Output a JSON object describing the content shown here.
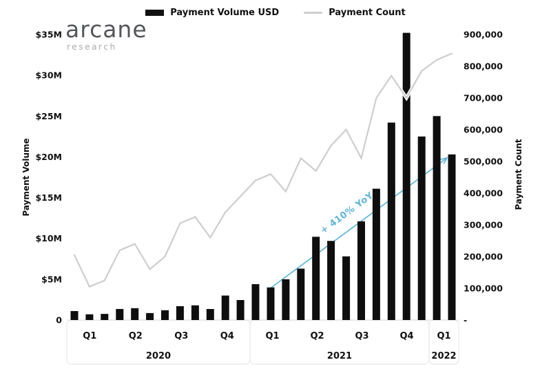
{
  "logo": {
    "title": "arcane",
    "subtitle": "research"
  },
  "legend": {
    "items": [
      {
        "label": "Payment Volume USD",
        "swatch": "bar",
        "color": "#111111"
      },
      {
        "label": "Payment Count",
        "swatch": "line",
        "color": "#cdcdcd"
      }
    ]
  },
  "colors": {
    "bar": "#0e0e0e",
    "line": "#cdcdcd",
    "annotation": "#5cb5d9",
    "axis_box_border": "#ececec",
    "baseline": "#e3e3e3"
  },
  "chart_data": {
    "type": "bar",
    "title": "",
    "x": [
      "Jan 2020",
      "Feb 2020",
      "Mar 2020",
      "Apr 2020",
      "May 2020",
      "Jun 2020",
      "Jul 2020",
      "Aug 2020",
      "Sep 2020",
      "Oct 2020",
      "Nov 2020",
      "Dec 2020",
      "Jan 2021",
      "Feb 2021",
      "Mar 2021",
      "Apr 2021",
      "May 2021",
      "Jun 2021",
      "Jul 2021",
      "Aug 2021",
      "Sep 2021",
      "Oct 2021",
      "Nov 2021",
      "Dec 2021",
      "Jan 2022",
      "Feb 2022"
    ],
    "series": [
      {
        "name": "Payment Volume USD",
        "render": "bar",
        "axis": "left",
        "unit": "USD millions",
        "values": [
          1.1,
          0.7,
          0.75,
          1.35,
          1.45,
          0.85,
          1.2,
          1.7,
          1.8,
          1.35,
          3.0,
          2.45,
          4.4,
          4.0,
          5.0,
          6.3,
          10.2,
          9.7,
          7.8,
          12.1,
          16.1,
          24.2,
          35.2,
          22.5,
          25.0,
          20.3
        ]
      },
      {
        "name": "Payment Count",
        "render": "line",
        "axis": "right",
        "unit": "payments",
        "values": [
          205000,
          105000,
          125000,
          220000,
          240000,
          160000,
          200000,
          305000,
          325000,
          260000,
          340000,
          390000,
          440000,
          460000,
          405000,
          510000,
          470000,
          550000,
          600000,
          510000,
          700000,
          770000,
          700000,
          785000,
          820000,
          840000
        ]
      }
    ],
    "left_axis": {
      "title": "Payment Volume",
      "tick_labels": [
        "$35M",
        "$30M",
        "$25M",
        "$20M",
        "$15M",
        "$10M",
        "$5M",
        "0"
      ],
      "range_musd": [
        0,
        35
      ]
    },
    "right_axis": {
      "title": "Payment Count",
      "tick_labels": [
        "900,000",
        "800,000",
        "700,000",
        "600,000",
        "500,000",
        "400,000",
        "300,000",
        "200,000",
        "100,000",
        "-"
      ],
      "range": [
        0,
        900000
      ]
    },
    "x_axis": {
      "years": [
        {
          "label": "2020",
          "quarters": [
            "Q1",
            "Q2",
            "Q3",
            "Q4"
          ],
          "months": 12
        },
        {
          "label": "2021",
          "quarters": [
            "Q1",
            "Q2",
            "Q3",
            "Q4"
          ],
          "months": 12
        },
        {
          "label": "2022",
          "quarters": [
            "Q1"
          ],
          "months": 2
        }
      ]
    },
    "grid": "off",
    "legend_position": "top-center",
    "annotation": {
      "text": "+ 410% YoY",
      "from": "Feb 2021",
      "to": "Feb 2022",
      "color": "#5cb5d9",
      "shape": "diagonal-arrow"
    }
  }
}
